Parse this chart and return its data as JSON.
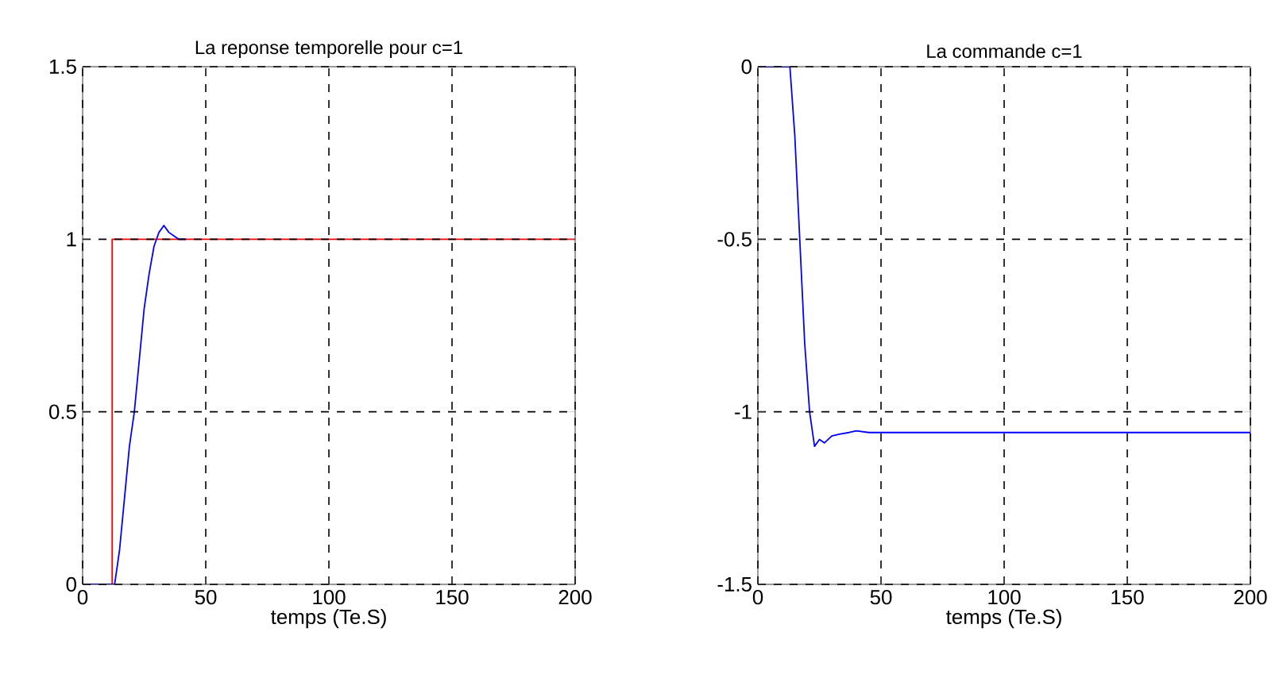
{
  "chart_data": [
    {
      "type": "line",
      "title": "La reponse temporelle pour  c=1",
      "xlabel": "temps (Te.S)",
      "xlim": [
        0,
        200
      ],
      "ylim": [
        0,
        1.5
      ],
      "xticks": [
        0,
        50,
        100,
        150,
        200
      ],
      "yticks": [
        0,
        0.5,
        1,
        1.5
      ],
      "grid": true,
      "line_style": "solid",
      "series": [
        {
          "type": "step",
          "color": "#ff0000",
          "x": [
            0,
            12,
            200
          ],
          "values": [
            0,
            1,
            1
          ]
        },
        {
          "color": "#0000ff",
          "x": [
            0,
            13,
            15,
            17,
            19,
            21,
            23,
            25,
            27,
            29,
            31,
            33,
            35,
            37,
            39,
            42
          ],
          "values": [
            0,
            0,
            0.1,
            0.25,
            0.4,
            0.5,
            0.65,
            0.8,
            0.9,
            0.98,
            1.02,
            1.04,
            1.02,
            1.01,
            1.0,
            1.0
          ]
        }
      ]
    },
    {
      "type": "line",
      "title": "La commande c=1",
      "xlabel": "temps (Te.S)",
      "xlim": [
        0,
        200
      ],
      "ylim": [
        -1.5,
        0
      ],
      "xticks": [
        0,
        50,
        100,
        150,
        200
      ],
      "yticks": [
        -1.5,
        -1,
        -0.5,
        0
      ],
      "grid": true,
      "line_style": "solid",
      "series": [
        {
          "color": "#0000ff",
          "x": [
            0,
            13,
            15,
            17,
            19,
            21,
            23,
            25,
            27,
            30,
            33,
            37,
            40,
            45,
            200
          ],
          "values": [
            0,
            0,
            -0.2,
            -0.5,
            -0.8,
            -1.0,
            -1.1,
            -1.08,
            -1.09,
            -1.07,
            -1.065,
            -1.06,
            -1.055,
            -1.06,
            -1.06
          ]
        }
      ]
    }
  ]
}
